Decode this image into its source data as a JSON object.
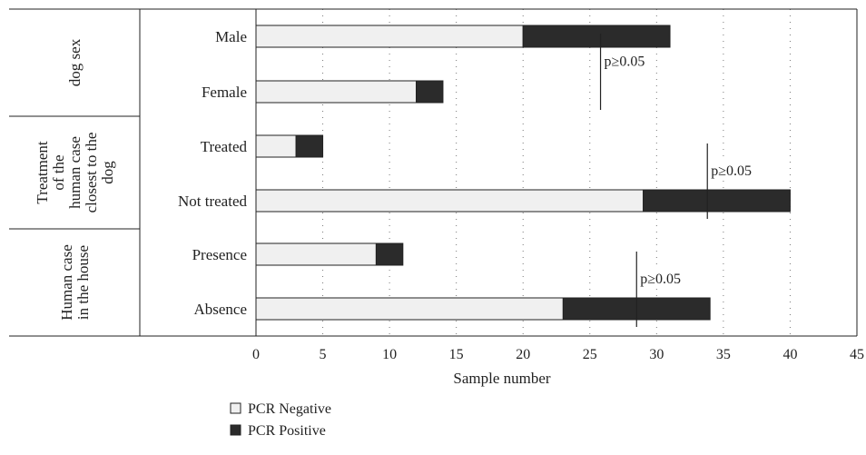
{
  "chart_data": {
    "type": "bar",
    "orientation": "horizontal",
    "stacked": true,
    "xlabel": "Sample number",
    "xlim": [
      0,
      45
    ],
    "xticks": [
      0,
      5,
      10,
      15,
      20,
      25,
      30,
      35,
      40,
      45
    ],
    "grid": "vertical dotted",
    "legend_position": "bottom-left",
    "categories": [
      "Male",
      "Female",
      "Treated",
      "Not treated",
      "Presence",
      "Absence"
    ],
    "groups": [
      {
        "label_lines": [
          "dog sex"
        ],
        "categories": [
          "Male",
          "Female"
        ]
      },
      {
        "label_lines": [
          "Treatment",
          "of the",
          "human case",
          "closest to the",
          "dog"
        ],
        "categories": [
          "Treated",
          "Not treated"
        ]
      },
      {
        "label_lines": [
          "Human case",
          "in the house"
        ],
        "categories": [
          "Presence",
          "Absence"
        ]
      }
    ],
    "series": [
      {
        "name": "PCR Negative",
        "color": "#f0f0f0",
        "values": [
          20,
          12,
          3,
          29,
          9,
          23
        ]
      },
      {
        "name": "PCR Positive",
        "color": "#2b2b2b",
        "values": [
          11,
          2,
          2,
          11,
          2,
          11
        ]
      }
    ],
    "annotations": [
      {
        "text": "p≥0.05",
        "group": 0,
        "x": 25.8
      },
      {
        "text": "p≥0.05",
        "group": 1,
        "x": 33.8
      },
      {
        "text": "p≥0.05",
        "group": 2,
        "x": 28.5
      }
    ]
  }
}
